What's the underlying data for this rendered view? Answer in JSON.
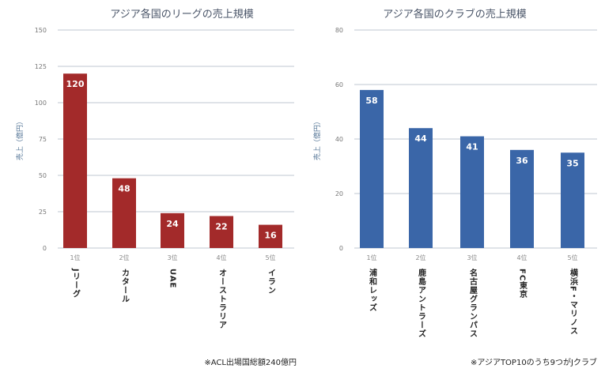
{
  "chart_data": [
    {
      "type": "bar",
      "title": "アジア各国のリーグの売上規模",
      "ylabel": "売上（億円）",
      "xlabel": "",
      "ylim": [
        0,
        150
      ],
      "yticks": [
        0,
        25,
        50,
        75,
        100,
        125,
        150
      ],
      "grid": true,
      "ranks": [
        "1位",
        "2位",
        "3位",
        "4位",
        "5位"
      ],
      "categories": [
        "Jリーグ",
        "カタール",
        "UAE",
        "オーストラリア",
        "イラン"
      ],
      "values": [
        120,
        48,
        24,
        22,
        16
      ],
      "color": "#a32a2a",
      "note": "※ACL出場国総額240億円"
    },
    {
      "type": "bar",
      "title": "アジア各国のクラブの売上規模",
      "ylabel": "売上（億円）",
      "xlabel": "",
      "ylim": [
        0,
        80
      ],
      "yticks": [
        0,
        20,
        40,
        60,
        80
      ],
      "grid": true,
      "ranks": [
        "1位",
        "2位",
        "3位",
        "4位",
        "5位"
      ],
      "categories": [
        "浦和レッズ",
        "鹿島アントラーズ",
        "名古屋グランパス",
        "FC東京",
        "横浜F・マリノス"
      ],
      "values": [
        58,
        44,
        41,
        36,
        35
      ],
      "color": "#3a66a8",
      "note": "※アジアTOP10のうち9つがJクラブ"
    }
  ]
}
